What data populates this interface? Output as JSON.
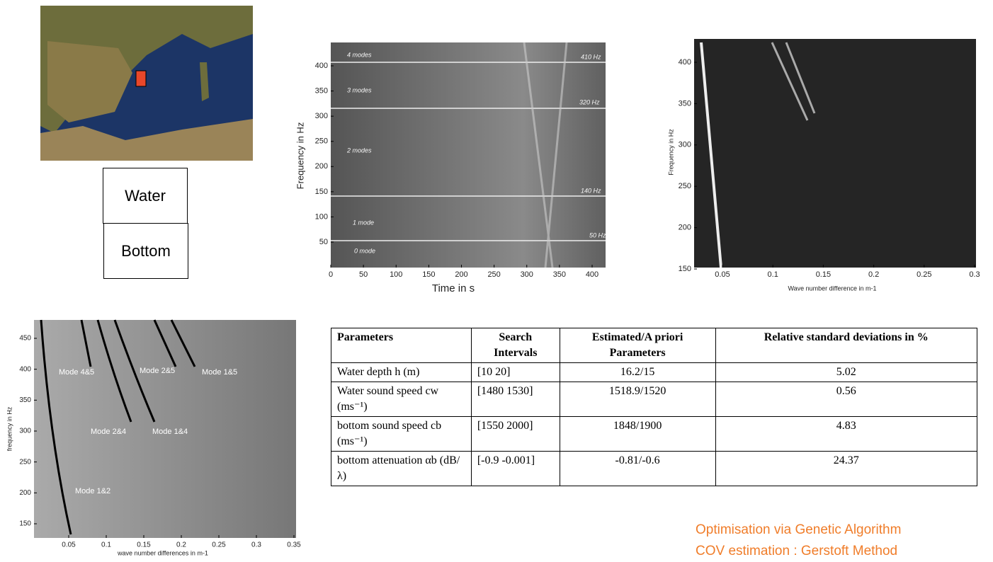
{
  "diagram": {
    "water_label": "Water",
    "bottom_label": "Bottom"
  },
  "spectrogram_time": {
    "ylabel": "Frequency in Hz",
    "xlabel": "Time in s",
    "xticks": [
      0,
      50,
      100,
      150,
      200,
      250,
      300,
      350,
      400
    ],
    "yticks": [
      50,
      100,
      150,
      200,
      250,
      300,
      350,
      400
    ],
    "annotations": [
      "4 modes",
      "3 modes",
      "2 modes",
      "1 mode",
      "0 mode",
      "410 Hz",
      "320 Hz",
      "140 Hz",
      "50 Hz"
    ]
  },
  "spectrogram_wavenumber": {
    "ylabel": "Frequency in Hz",
    "xlabel": "Wave number difference in m-1",
    "xticks": [
      0.05,
      0.1,
      0.15,
      0.2,
      0.25,
      0.3
    ],
    "yticks": [
      150,
      200,
      250,
      300,
      350,
      400
    ]
  },
  "mode_plot": {
    "ylabel": "frequency in Hz",
    "xlabel": "wave number differences in m-1",
    "xticks": [
      0.05,
      0.1,
      0.15,
      0.2,
      0.25,
      0.3,
      0.35
    ],
    "yticks": [
      150,
      200,
      250,
      300,
      350,
      400,
      450
    ],
    "annotations": [
      "Mode 4&5",
      "Mode 2&5",
      "Mode 1&5",
      "Mode 2&4",
      "Mode 1&4",
      "Mode 1&2"
    ]
  },
  "table": {
    "header": [
      "Parameters",
      "Search Intervals",
      "Estimated/A priori Parameters",
      "Relative standard deviations in %"
    ],
    "rows": [
      [
        "Water depth h (m)",
        "[10 20]",
        "16.2/15",
        "5.02"
      ],
      [
        "Water sound speed cw (ms⁻¹)",
        "[1480 1530]",
        "1518.9/1520",
        "0.56"
      ],
      [
        "bottom sound speed cb (ms⁻¹)",
        "[1550 2000]",
        "1848/1900",
        "4.83"
      ],
      [
        "bottom attenuation αb (dB/λ)",
        "[-0.9 -0.001]",
        "-0.81/-0.6",
        "24.37"
      ]
    ]
  },
  "notes": [
    "Optimisation via Genetic Algorithm",
    "COV estimation : Gerstoft Method"
  ]
}
